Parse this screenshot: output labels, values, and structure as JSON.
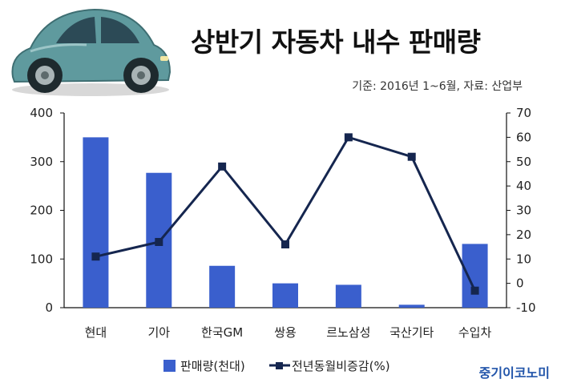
{
  "header": {
    "title": "상반기 자동차 내수 판매량",
    "source": "기준: 2016년 1~6월, 자료: 산업부",
    "logo": "중기이코노미"
  },
  "car_icon": "car-illustration",
  "colors": {
    "bar": "#3a5fcd",
    "line": "#15264f",
    "axis": "#111111"
  },
  "chart_data": {
    "type": "bar",
    "title": "상반기 자동차 내수 판매량",
    "categories": [
      "현대",
      "기아",
      "한국GM",
      "쌍용",
      "르노삼성",
      "국산기타",
      "수입차"
    ],
    "series": [
      {
        "name": "판매량(천대)",
        "type": "bar",
        "axis": "left",
        "values": [
          350,
          277,
          86,
          50,
          47,
          6,
          131
        ]
      },
      {
        "name": "전년동월비증감(%)",
        "type": "line",
        "axis": "right",
        "values": [
          11,
          17,
          48,
          16,
          60,
          52,
          -3
        ]
      }
    ],
    "y_left": {
      "min": 0,
      "max": 400,
      "ticks": [
        "0",
        "100",
        "200",
        "300",
        "400"
      ]
    },
    "y_right": {
      "min": -10,
      "max": 70,
      "ticks": [
        "-10",
        "0",
        "10",
        "20",
        "30",
        "40",
        "50",
        "60",
        "70"
      ]
    },
    "grid": false,
    "legend": "bottom"
  }
}
